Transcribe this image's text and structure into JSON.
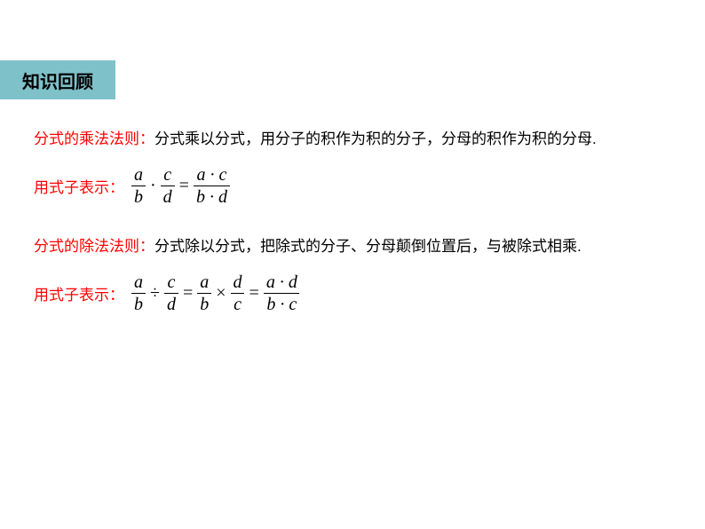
{
  "header": {
    "title": "知识回顾",
    "bg_color": "#7fc1c9",
    "text_color": "#000000",
    "font_size": 20
  },
  "sections": [
    {
      "rule_label": "分式的乘法法则：",
      "rule_text": "分式乘以分式，用分子的积作为积的分子，分母的积作为积的分母.",
      "formula_label": "用式子表示：",
      "formula": {
        "type": "multiplication",
        "lhs_frac1": {
          "num": "a",
          "den": "b"
        },
        "op1": "·",
        "lhs_frac2": {
          "num": "c",
          "den": "d"
        },
        "eq": "=",
        "rhs": {
          "num": "a · c",
          "den": "b · d"
        }
      }
    },
    {
      "rule_label": "分式的除法法则：",
      "rule_text": "分式除以分式，把除式的分子、分母颠倒位置后，与被除式相乘.",
      "formula_label": "用式子表示：",
      "formula": {
        "type": "division",
        "f1": {
          "num": "a",
          "den": "b"
        },
        "op1": "÷",
        "f2": {
          "num": "c",
          "den": "d"
        },
        "eq1": "=",
        "f3": {
          "num": "a",
          "den": "b"
        },
        "op2": "×",
        "f4": {
          "num": "d",
          "den": "c"
        },
        "eq2": "=",
        "f5": {
          "num": "a · d",
          "den": "b · c"
        }
      }
    }
  ],
  "colors": {
    "red": "#ff0000",
    "black": "#000000",
    "background": "#ffffff"
  },
  "typography": {
    "body_font": "Microsoft YaHei",
    "math_font": "Times New Roman",
    "body_size": 17,
    "math_size": 20
  }
}
